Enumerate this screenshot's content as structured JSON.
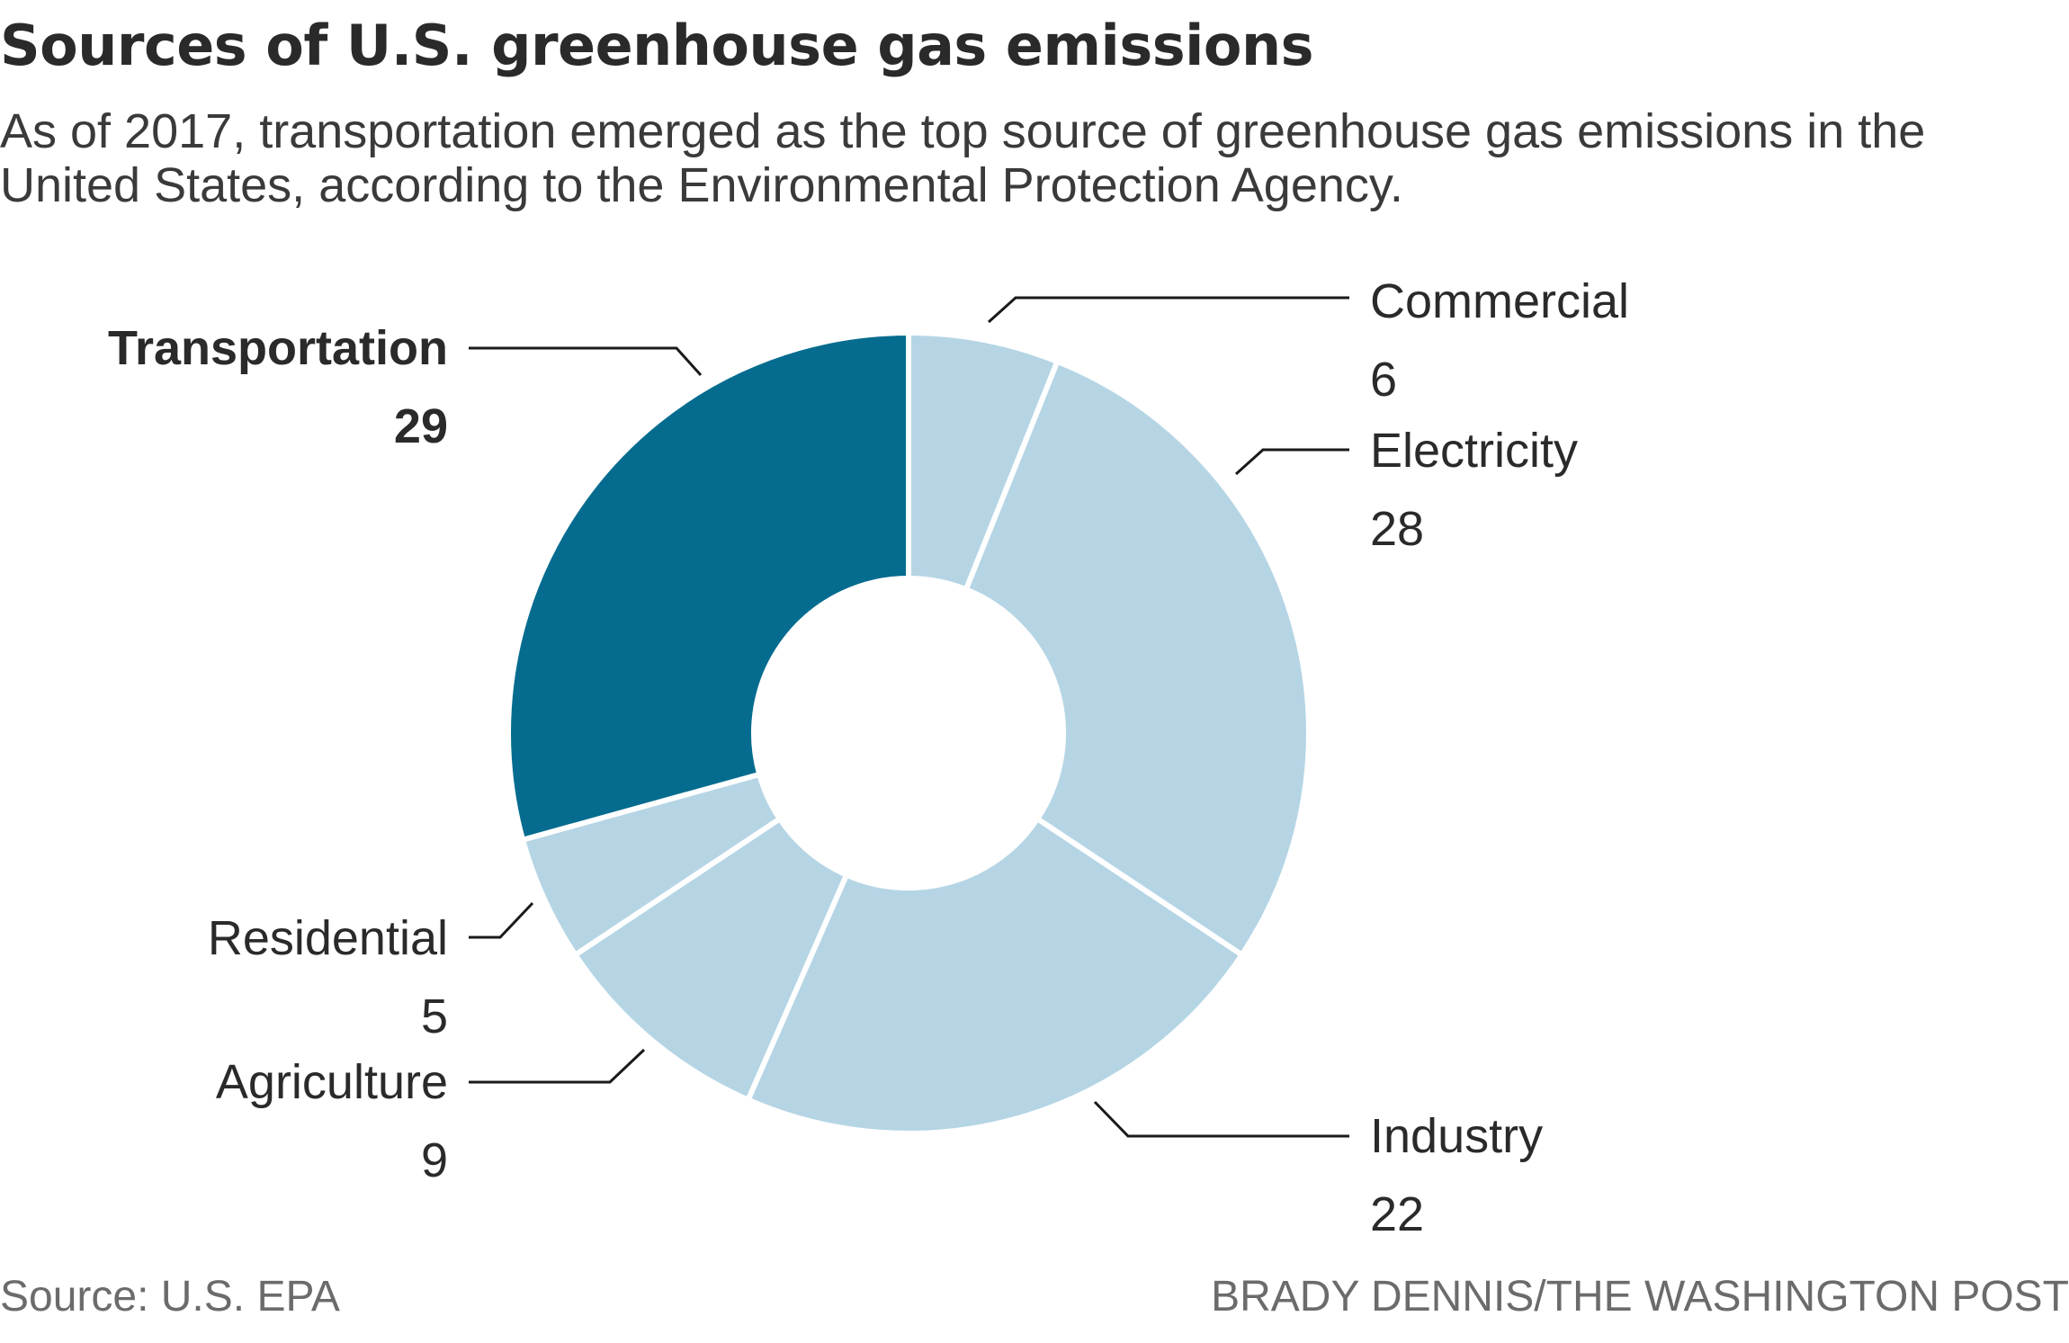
{
  "header": {
    "title": "Sources of U.S. greenhouse gas emissions",
    "subtitle": "As of 2017, transportation emerged as the top source of greenhouse gas emissions in the United States, according to the Environmental Protection Agency."
  },
  "footer": {
    "source": "Source: U.S. EPA",
    "credit": "BRADY DENNIS/THE WASHINGTON POST"
  },
  "colors": {
    "highlight": "#056c8f",
    "default": "#b5d5e5",
    "separator": "#ffffff",
    "text": "#2a2a2a",
    "muted": "#6b6b6b",
    "leader": "#1a1a1a"
  },
  "chart_data": {
    "type": "pie",
    "donut": true,
    "title": "Sources of U.S. greenhouse gas emissions",
    "slices": [
      {
        "label": "Commercial",
        "value": 6,
        "highlight": false
      },
      {
        "label": "Electricity",
        "value": 28,
        "highlight": false
      },
      {
        "label": "Industry",
        "value": 22,
        "highlight": false
      },
      {
        "label": "Agriculture",
        "value": 9,
        "highlight": false
      },
      {
        "label": "Residential",
        "value": 5,
        "highlight": false
      },
      {
        "label": "Transportation",
        "value": 29,
        "highlight": true
      }
    ],
    "start_angle": "12 o'clock",
    "direction": "clockwise"
  }
}
